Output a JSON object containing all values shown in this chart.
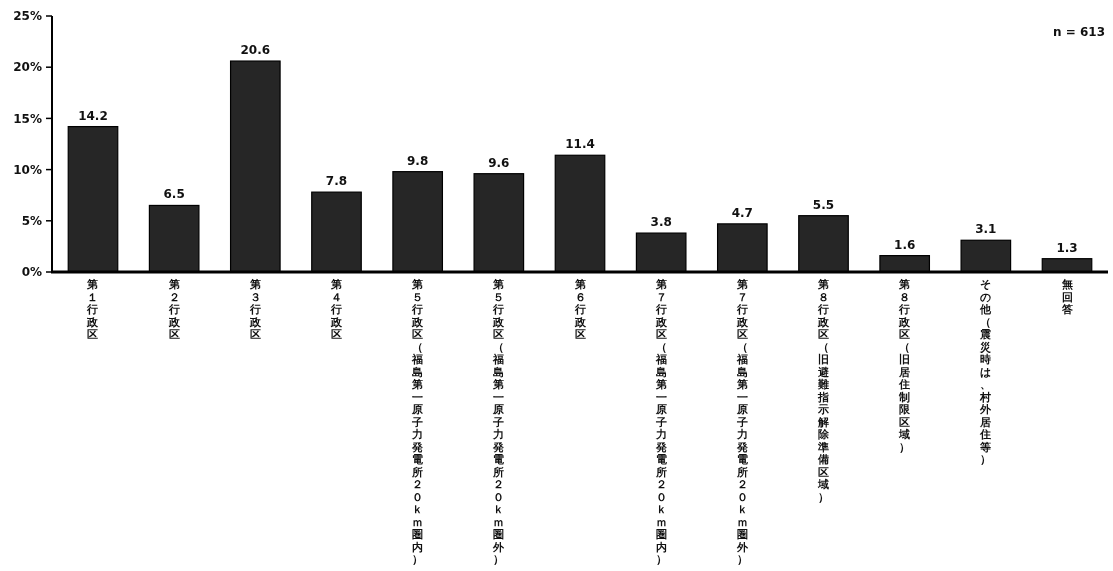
{
  "chart_data": {
    "type": "bar",
    "categories": [
      "第１行政区",
      "第２行政区",
      "第３行政区",
      "第４行政区",
      "第５行政区（福島第一原子力発電所２０ｋｍ圏内）",
      "第５行政区（福島第一原子力発電所２０ｋｍ圏外）",
      "第６行政区",
      "第７行政区（福島第一原子力発電所２０ｋｍ圏内）",
      "第７行政区（福島第一原子力発電所２０ｋｍ圏外）",
      "第８行政区（旧避難指示解除準備区域）",
      "第８行政区（旧居住制限区域）",
      "その他（震災時は、村外居住等）",
      "無回答"
    ],
    "values": [
      14.2,
      6.5,
      20.6,
      7.8,
      9.8,
      9.6,
      11.4,
      3.8,
      4.7,
      5.5,
      1.6,
      3.1,
      1.3
    ],
    "color": "#262626",
    "ylim": [
      0,
      25
    ],
    "yticks": [
      {
        "value": 0,
        "label": "0%"
      },
      {
        "value": 5,
        "label": "5%"
      },
      {
        "value": 10,
        "label": "10%"
      },
      {
        "value": 15,
        "label": "15%"
      },
      {
        "value": 20,
        "label": "20%"
      },
      {
        "value": 25,
        "label": "25%"
      }
    ],
    "data_labels": true,
    "annotations": [
      "n = 613"
    ]
  }
}
